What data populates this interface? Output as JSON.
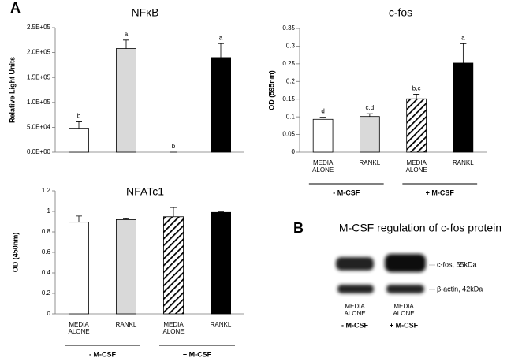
{
  "panel_labels": [
    "A",
    "B"
  ],
  "chart_data": [
    {
      "type": "bar",
      "title": "NFκB",
      "y_label": "Relative Light Units",
      "categories": [
        null,
        null,
        null,
        null
      ],
      "values": [
        48000,
        208000,
        0,
        190000
      ],
      "errors": [
        13000,
        17000,
        0,
        28000
      ],
      "annotations": [
        "b",
        "a",
        "b",
        "a"
      ],
      "colors": [
        "#ffffff",
        "#d9d9d9",
        "hatch",
        "#000000"
      ],
      "ylim": [
        0,
        250000
      ],
      "yticks": [
        {
          "value": 0,
          "label": "0.0E+00"
        },
        {
          "value": 50000,
          "label": "5.0E+04"
        },
        {
          "value": 100000,
          "label": "1.0E+05"
        },
        {
          "value": 150000,
          "label": "1.5E+05"
        },
        {
          "value": 200000,
          "label": "2.0E+05"
        },
        {
          "value": 250000,
          "label": "2.5E+05"
        }
      ]
    },
    {
      "type": "bar",
      "title": "c-fos",
      "y_label": "OD (595nm)",
      "categories": [
        "MEDIA ALONE",
        "RANKL",
        "MEDIA ALONE",
        "RANKL"
      ],
      "groups": [
        "- M-CSF",
        "+ M-CSF"
      ],
      "values": [
        0.093,
        0.101,
        0.151,
        0.252
      ],
      "errors": [
        0.006,
        0.008,
        0.013,
        0.055
      ],
      "annotations": [
        "d",
        "c,d",
        "b,c",
        "a"
      ],
      "colors": [
        "#ffffff",
        "#d9d9d9",
        "hatch",
        "#000000"
      ],
      "ylim": [
        0,
        0.35
      ],
      "yticks": [
        0,
        0.05,
        0.1,
        0.15,
        0.2,
        0.25,
        0.3,
        0.35
      ]
    },
    {
      "type": "bar",
      "title": "NFATc1",
      "y_label": "OD (450nm)",
      "categories": [
        "MEDIA ALONE",
        "RANKL",
        "MEDIA ALONE",
        "RANKL"
      ],
      "groups": [
        "- M-CSF",
        "+ M-CSF"
      ],
      "values": [
        0.895,
        0.92,
        0.948,
        0.99
      ],
      "errors": [
        0.06,
        0.008,
        0.09,
        0.005
      ],
      "colors": [
        "#ffffff",
        "#d9d9d9",
        "hatch",
        "#000000"
      ],
      "ylim": [
        0,
        1.2
      ],
      "yticks": [
        0,
        0.2,
        0.4,
        0.6,
        0.8,
        1,
        1.2
      ]
    }
  ],
  "blot": {
    "title": "M-CSF regulation of c-fos protein",
    "bands": [
      "c-fos, 55kDa",
      "β-actin, 42kDa"
    ],
    "lanes": [
      "MEDIA ALONE",
      "MEDIA ALONE"
    ],
    "groups": [
      "- M-CSF",
      "+ M-CSF"
    ]
  }
}
